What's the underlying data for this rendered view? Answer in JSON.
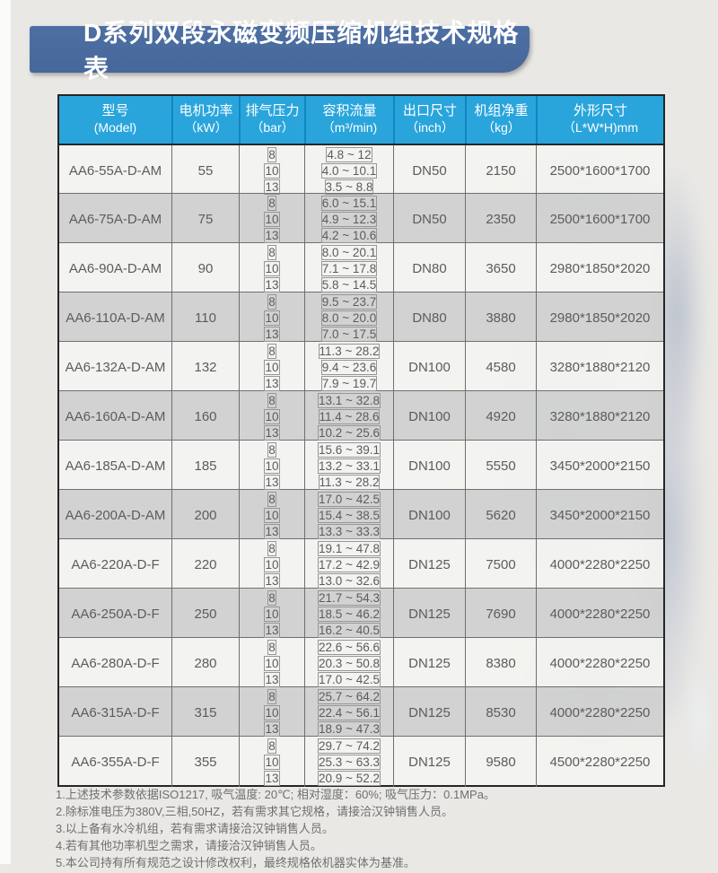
{
  "banner": {
    "title": "D系列双段永磁变频压缩机组技术规格表"
  },
  "colors": {
    "banner_blue": "#48699c",
    "header_blue": "#29a5dc",
    "header_divider": "#1285bf",
    "row_light": "#f4f4f1",
    "row_gray": "#d3d3d3",
    "border_dark": "#262626"
  },
  "table": {
    "headers": [
      {
        "line1": "型号",
        "line2": "(Model)"
      },
      {
        "line1": "电机功率",
        "line2": "（kW）"
      },
      {
        "line1": "排气压力",
        "line2": "（bar）"
      },
      {
        "line1": "容积流量",
        "line2": "（m³/min)"
      },
      {
        "line1": "出口尺寸",
        "line2": "（inch）"
      },
      {
        "line1": "机组净重",
        "line2": "（kg）"
      },
      {
        "line1": "外形尺寸",
        "line2": "（L*W*H)mm"
      }
    ],
    "rows": [
      {
        "model": "AA6-55A-D-AM",
        "power": "55",
        "pressures": [
          "8",
          "10",
          "13"
        ],
        "flows": [
          "4.8 ~ 12",
          "4.0 ~ 10.1",
          "3.5 ~ 8.8"
        ],
        "outlet": "DN50",
        "weight": "2150",
        "dims": "2500*1600*1700"
      },
      {
        "model": "AA6-75A-D-AM",
        "power": "75",
        "pressures": [
          "8",
          "10",
          "13"
        ],
        "flows": [
          "6.0 ~ 15.1",
          "4.9 ~ 12.3",
          "4.2 ~ 10.6"
        ],
        "outlet": "DN50",
        "weight": "2350",
        "dims": "2500*1600*1700"
      },
      {
        "model": "AA6-90A-D-AM",
        "power": "90",
        "pressures": [
          "8",
          "10",
          "13"
        ],
        "flows": [
          "8.0 ~ 20.1",
          "7.1 ~ 17.8",
          "5.8 ~ 14.5"
        ],
        "outlet": "DN80",
        "weight": "3650",
        "dims": "2980*1850*2020"
      },
      {
        "model": "AA6-110A-D-AM",
        "power": "110",
        "pressures": [
          "8",
          "10",
          "13"
        ],
        "flows": [
          "9.5 ~ 23.7",
          "8.0 ~ 20.0",
          "7.0 ~ 17.5"
        ],
        "outlet": "DN80",
        "weight": "3880",
        "dims": "2980*1850*2020"
      },
      {
        "model": "AA6-132A-D-AM",
        "power": "132",
        "pressures": [
          "8",
          "10",
          "13"
        ],
        "flows": [
          "11.3 ~ 28.2",
          "9.4 ~ 23.6",
          "7.9 ~ 19.7"
        ],
        "outlet": "DN100",
        "weight": "4580",
        "dims": "3280*1880*2120"
      },
      {
        "model": "AA6-160A-D-AM",
        "power": "160",
        "pressures": [
          "8",
          "10",
          "13"
        ],
        "flows": [
          "13.1 ~ 32.8",
          "11.4 ~ 28.6",
          "10.2 ~ 25.6"
        ],
        "outlet": "DN100",
        "weight": "4920",
        "dims": "3280*1880*2120"
      },
      {
        "model": "AA6-185A-D-AM",
        "power": "185",
        "pressures": [
          "8",
          "10",
          "13"
        ],
        "flows": [
          "15.6 ~ 39.1",
          "13.2 ~ 33.1",
          "11.3 ~ 28.2"
        ],
        "outlet": "DN100",
        "weight": "5550",
        "dims": "3450*2000*2150"
      },
      {
        "model": "AA6-200A-D-AM",
        "power": "200",
        "pressures": [
          "8",
          "10",
          "13"
        ],
        "flows": [
          "17.0 ~ 42.5",
          "15.4 ~ 38.5",
          "13.3 ~ 33.3"
        ],
        "outlet": "DN100",
        "weight": "5620",
        "dims": "3450*2000*2150"
      },
      {
        "model": "AA6-220A-D-F",
        "power": "220",
        "pressures": [
          "8",
          "10",
          "13"
        ],
        "flows": [
          "19.1 ~ 47.8",
          "17.2 ~ 42.9",
          "13.0 ~ 32.6"
        ],
        "outlet": "DN125",
        "weight": "7500",
        "dims": "4000*2280*2250"
      },
      {
        "model": "AA6-250A-D-F",
        "power": "250",
        "pressures": [
          "8",
          "10",
          "13"
        ],
        "flows": [
          "21.7 ~ 54.3",
          "18.5 ~ 46.2",
          "16.2 ~ 40.5"
        ],
        "outlet": "DN125",
        "weight": "7690",
        "dims": "4000*2280*2250"
      },
      {
        "model": "AA6-280A-D-F",
        "power": "280",
        "pressures": [
          "8",
          "10",
          "13"
        ],
        "flows": [
          "22.6 ~ 56.6",
          "20.3 ~ 50.8",
          "17.0 ~ 42.5"
        ],
        "outlet": "DN125",
        "weight": "8380",
        "dims": "4000*2280*2250"
      },
      {
        "model": "AA6-315A-D-F",
        "power": "315",
        "pressures": [
          "8",
          "10",
          "13"
        ],
        "flows": [
          "25.7 ~ 64.2",
          "22.4 ~ 56.1",
          "18.9 ~ 47.3"
        ],
        "outlet": "DN125",
        "weight": "8530",
        "dims": "4000*2280*2250"
      },
      {
        "model": "AA6-355A-D-F",
        "power": "355",
        "pressures": [
          "8",
          "10",
          "13"
        ],
        "flows": [
          "29.7 ~ 74.2",
          "25.3 ~ 63.3",
          "20.9 ~ 52.2"
        ],
        "outlet": "DN125",
        "weight": "9580",
        "dims": "4500*2280*2250"
      }
    ]
  },
  "notes": [
    "1.上述技术参数依据ISO1217, 吸气温度: 20℃; 相对湿度：60%; 吸气压力：0.1MPa。",
    "2.除标准电压为380V,三相,50HZ，若有需求其它规格，请接洽汉钟销售人员。",
    "3.以上备有水冷机组，若有需求请接洽汉钟销售人员。",
    "4.若有其他功率机型之需求，请接洽汉钟销售人员。",
    "5.本公司持有所有规范之设计修改权利，最终规格依机器实体为基准。"
  ]
}
